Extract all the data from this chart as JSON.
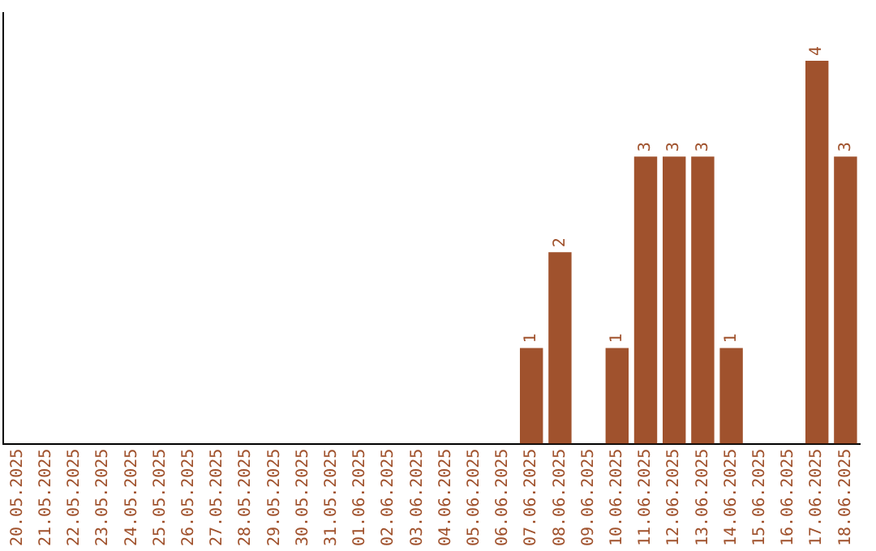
{
  "chart_data": {
    "type": "bar",
    "categories": [
      "20.05.2025",
      "21.05.2025",
      "22.05.2025",
      "23.05.2025",
      "24.05.2025",
      "25.05.2025",
      "26.05.2025",
      "27.05.2025",
      "28.05.2025",
      "29.05.2025",
      "30.05.2025",
      "31.05.2025",
      "01.06.2025",
      "02.06.2025",
      "03.06.2025",
      "04.06.2025",
      "05.06.2025",
      "06.06.2025",
      "07.06.2025",
      "08.06.2025",
      "09.06.2025",
      "10.06.2025",
      "11.06.2025",
      "12.06.2025",
      "13.06.2025",
      "14.06.2025",
      "15.06.2025",
      "16.06.2025",
      "17.06.2025",
      "18.06.2025"
    ],
    "values": [
      null,
      null,
      null,
      null,
      null,
      null,
      null,
      null,
      null,
      null,
      null,
      null,
      null,
      null,
      null,
      null,
      null,
      null,
      1,
      2,
      null,
      1,
      3,
      3,
      3,
      1,
      null,
      null,
      4,
      3
    ],
    "data_labels": true,
    "color": "#a0522d",
    "tick_labels": "x",
    "grid": false,
    "legend": false
  }
}
